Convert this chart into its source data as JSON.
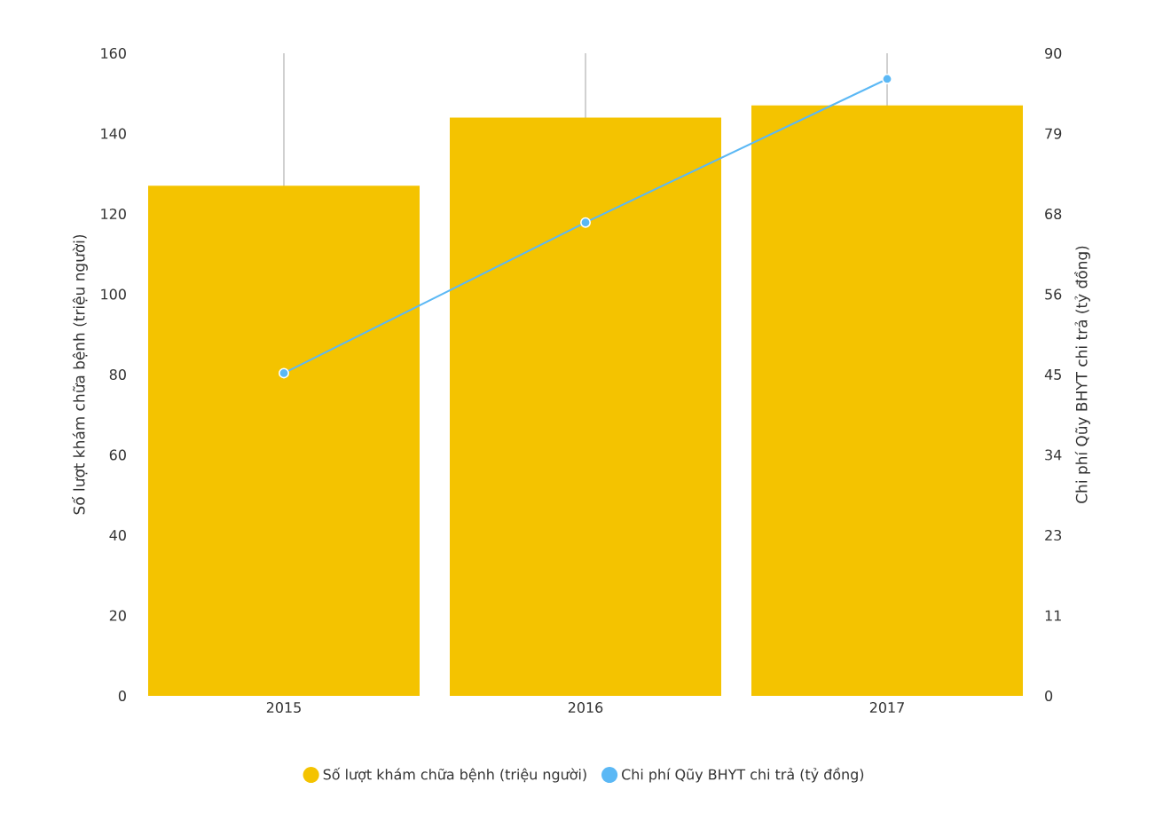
{
  "chart_data": {
    "type": "bar",
    "categories": [
      "2015",
      "2016",
      "2017"
    ],
    "ylabel": "Số lượt khám chữa bệnh (triệu người)",
    "y2label": "Chi phí Qũy BHYT chi trả (tỷ đồng)",
    "series": [
      {
        "name": "Số lượt khám chữa bệnh (triệu người)",
        "color": "#f4c300",
        "values": [
          127,
          144,
          147
        ]
      },
      {
        "name": "Chi phí Qũy BHYT chi trả (tỷ đồng)",
        "type": "line",
        "axis": "y2",
        "color": "#5bb8f5",
        "values": [
          45.2,
          66.3,
          86.4
        ]
      }
    ],
    "ylim": [
      0,
      160
    ],
    "yticks": [
      0,
      20,
      40,
      60,
      80,
      100,
      120,
      140,
      160
    ],
    "y2lim": [
      0,
      90
    ],
    "y2ticks": [
      0,
      {
        "value": 11.25,
        "label": "11"
      },
      {
        "value": 22.5,
        "label": "23"
      },
      {
        "value": 33.75,
        "label": "34"
      },
      45,
      {
        "value": 56.25,
        "label": "56"
      },
      {
        "value": 67.5,
        "label": "68"
      },
      {
        "value": 78.75,
        "label": "79"
      },
      90
    ],
    "grid": "x",
    "legend": "bottom",
    "marker": "circle",
    "line_style": "solid"
  }
}
